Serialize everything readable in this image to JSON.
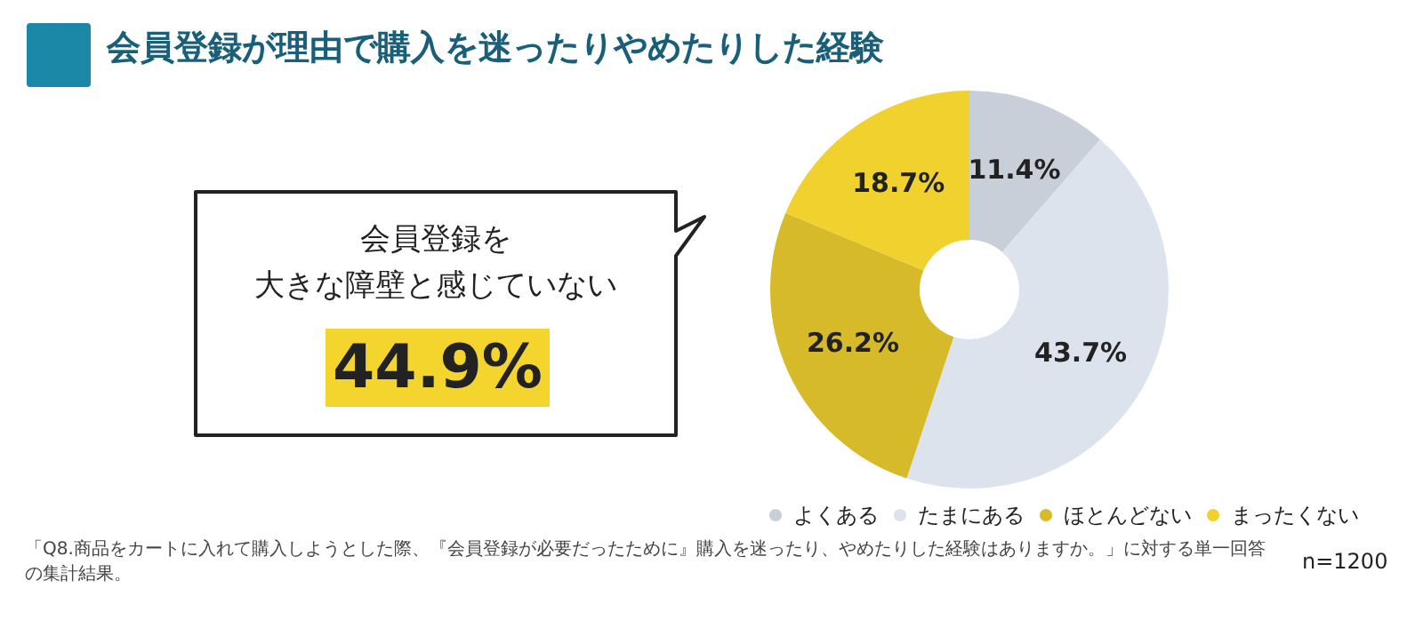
{
  "chart_data": {
    "type": "donut",
    "title": "会員登録が理由で購入を迷ったりやめたりした経験",
    "categories": [
      "よくある",
      "たまにある",
      "ほとんどない",
      "まったくない"
    ],
    "values": [
      11.4,
      43.7,
      26.2,
      18.7
    ],
    "value_labels": [
      "11.4%",
      "43.7%",
      "26.2%",
      "18.7%"
    ],
    "colors": [
      "#c9cfd9",
      "#dce3ec",
      "#d6ba2a",
      "#f0d12e"
    ],
    "legend": "bottom",
    "annotations": [
      "会員登録を",
      "大きな障壁と感じていない",
      "44.9%",
      "「Q8.商品をカートに入れて購入しようとした際、『会員登録が必要だったために』購入を迷ったり、やめたりした経験はありますか。」に対する単一回答の集計結果。",
      "n=1200"
    ]
  }
}
